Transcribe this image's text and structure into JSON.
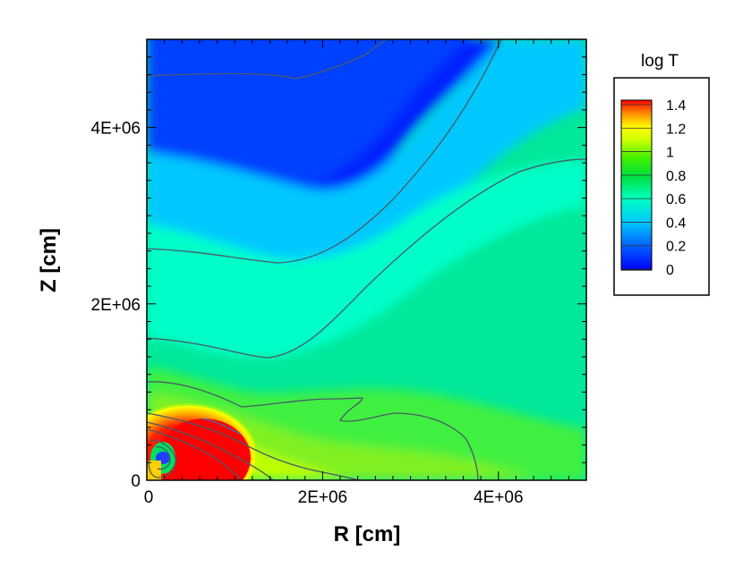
{
  "chart_data": {
    "type": "heatmap",
    "title": "",
    "xlabel": "R [cm]",
    "ylabel": "Z [cm]",
    "xlim": [
      0,
      5000000
    ],
    "ylim": [
      0,
      5000000
    ],
    "x_ticks": [
      {
        "value": 0,
        "label": "0"
      },
      {
        "value": 2000000,
        "label": "2E+06"
      },
      {
        "value": 4000000,
        "label": "4E+06"
      }
    ],
    "y_ticks": [
      {
        "value": 0,
        "label": "0"
      },
      {
        "value": 2000000,
        "label": "2E+06"
      },
      {
        "value": 4000000,
        "label": "4E+06"
      }
    ],
    "colorbar": {
      "title": "log T",
      "levels": [
        "1.4",
        "1.2",
        "1",
        "0.8",
        "0.6",
        "0.4",
        "0.2",
        "0"
      ],
      "range": [
        0,
        1.45
      ],
      "colors": [
        "#0000ff",
        "#00a0ff",
        "#00ffff",
        "#00ff80",
        "#00e000",
        "#80ff00",
        "#ffff00",
        "#ffb000",
        "#ff4000",
        "#ff0000"
      ]
    },
    "contour_levels": [
      0.2,
      0.4,
      0.6,
      0.8,
      1.0,
      1.2,
      1.4
    ]
  }
}
